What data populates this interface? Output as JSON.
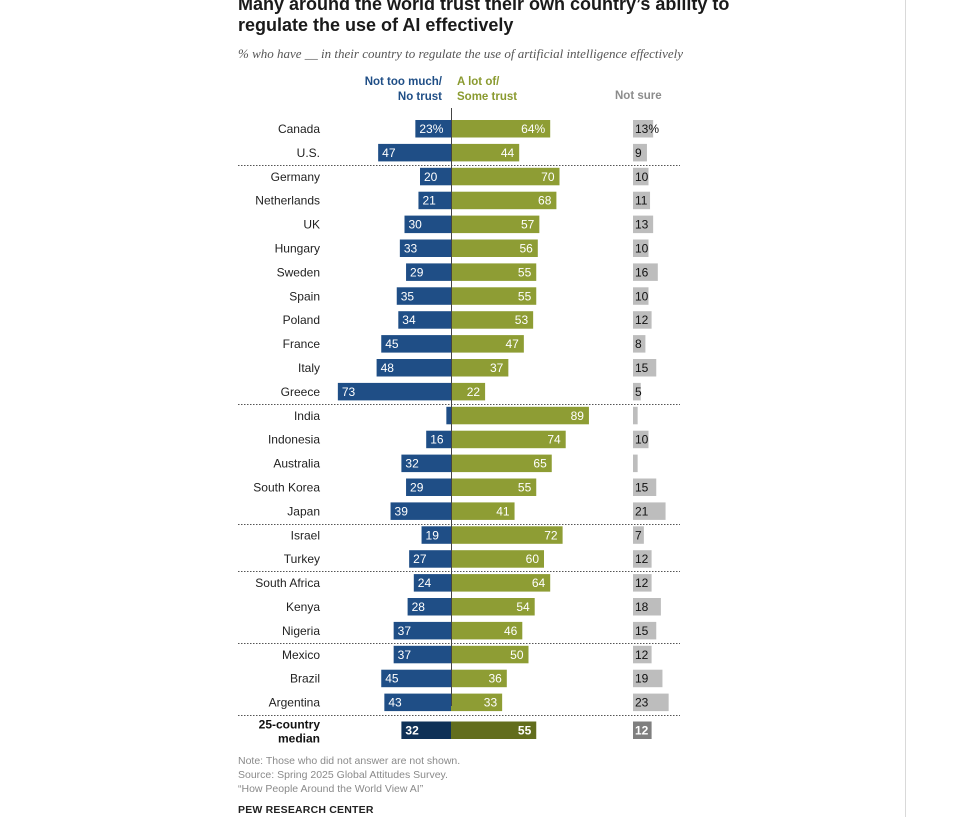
{
  "title": "Many around the world trust their own country’s ability to regulate the use of AI effectively",
  "subtitle": "% who have __ in their country to regulate the use of artificial intelligence effectively",
  "headers": {
    "negative": "Not too much/ No trust",
    "positive": "A lot of/ Some trust",
    "not_sure": "Not sure"
  },
  "colors": {
    "negative": "#1f4e86",
    "positive": "#8e9d34",
    "not_sure": "#bdbdbd",
    "median_negative": "#0f3157",
    "median_positive": "#626d1d",
    "median_not_sure": "#7f7f7f"
  },
  "notes": {
    "note": "Note: Those who did not answer are not shown.",
    "source": "Source: Spring 2025 Global Attitudes Survey.",
    "report": "“How People Around the World View AI”",
    "brand": "PEW RESEARCH CENTER"
  },
  "chart_data": {
    "type": "bar",
    "orientation": "diverging-horizontal",
    "title": "Many around the world trust their own country’s ability to regulate the use of AI effectively",
    "categories": [
      "Canada",
      "U.S.",
      "Germany",
      "Netherlands",
      "UK",
      "Hungary",
      "Sweden",
      "Spain",
      "Poland",
      "France",
      "Italy",
      "Greece",
      "India",
      "Indonesia",
      "Australia",
      "South Korea",
      "Japan",
      "Israel",
      "Turkey",
      "South Africa",
      "Kenya",
      "Nigeria",
      "Mexico",
      "Brazil",
      "Argentina",
      "25-country median"
    ],
    "series": [
      {
        "name": "Not too much/ No trust",
        "values": [
          23,
          47,
          20,
          21,
          30,
          33,
          29,
          35,
          34,
          45,
          48,
          73,
          3,
          16,
          32,
          29,
          39,
          19,
          27,
          24,
          28,
          37,
          37,
          45,
          43,
          32
        ],
        "labels": [
          "23%",
          "47",
          "20",
          "21",
          "30",
          "33",
          "29",
          "35",
          "34",
          "45",
          "48",
          "73",
          "",
          "16",
          "32",
          "29",
          "39",
          "19",
          "27",
          "24",
          "28",
          "37",
          "37",
          "45",
          "43",
          "32"
        ]
      },
      {
        "name": "A lot of/ Some trust",
        "values": [
          64,
          44,
          70,
          68,
          57,
          56,
          55,
          55,
          53,
          47,
          37,
          22,
          89,
          74,
          65,
          55,
          41,
          72,
          60,
          64,
          54,
          46,
          50,
          36,
          33,
          55
        ],
        "labels": [
          "64%",
          "44",
          "70",
          "68",
          "57",
          "56",
          "55",
          "55",
          "53",
          "47",
          "37",
          "22",
          "89",
          "74",
          "65",
          "55",
          "41",
          "72",
          "60",
          "64",
          "54",
          "46",
          "50",
          "36",
          "33",
          "55"
        ]
      },
      {
        "name": "Not sure",
        "values": [
          13,
          9,
          10,
          11,
          13,
          10,
          16,
          10,
          12,
          8,
          15,
          5,
          3,
          10,
          3,
          15,
          21,
          7,
          12,
          12,
          18,
          15,
          12,
          19,
          23,
          12
        ],
        "labels": [
          "13%",
          "9",
          "10",
          "11",
          "13",
          "10",
          "16",
          "10",
          "12",
          "8",
          "15",
          "5",
          "",
          "10",
          "",
          "15",
          "21",
          "7",
          "12",
          "12",
          "18",
          "15",
          "12",
          "19",
          "23",
          "12"
        ]
      }
    ],
    "region_breaks_after": [
      "U.S.",
      "Greece",
      "Japan",
      "Turkey",
      "Nigeria",
      "Argentina"
    ],
    "median_label_lines": [
      "25-country",
      "median"
    ]
  }
}
